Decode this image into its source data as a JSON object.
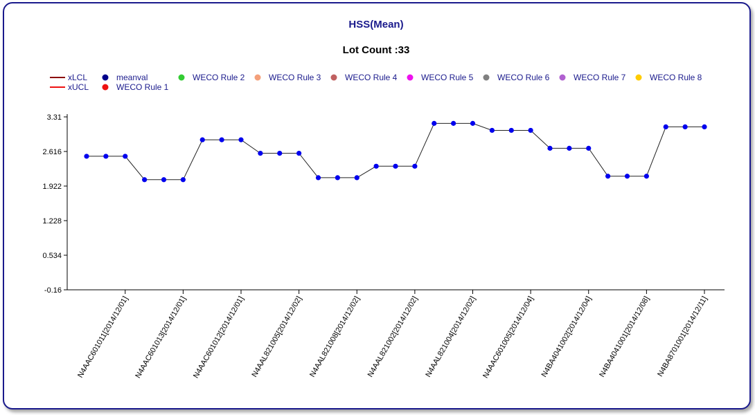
{
  "chart_data": {
    "type": "line",
    "title": "HSS(Mean)",
    "subtitle": "Lot Count :33",
    "ylim": [
      -0.16,
      3.31
    ],
    "y_ticks": [
      "3.31",
      "2.616",
      "1.922",
      "1.228",
      "0.534",
      "-0.16"
    ],
    "y_tick_values": [
      3.31,
      2.616,
      1.922,
      1.228,
      0.534,
      -0.16
    ],
    "x_tick_labels": [
      "N4AAC601011[2014/12/01]",
      "N4AAC601013[2014/12/01]",
      "N4AAC601012[2014/12/01]",
      "N4AAL821005[2014/12/02]",
      "N4AAL821008[2014/12/02]",
      "N4AAL821002[2014/12/02]",
      "N4AAL821004[2014/12/02]",
      "N4AAC601005[2014/12/04]",
      "N4BA4041002[2014/12/04]",
      "N4BA4041001[2014/12/08]",
      "N4BA8701001[2014/12/11]"
    ],
    "series": [
      {
        "name": "meanval",
        "color": "#0000ee",
        "values": [
          2.52,
          2.52,
          2.52,
          2.05,
          2.05,
          2.05,
          2.85,
          2.85,
          2.85,
          2.58,
          2.58,
          2.58,
          2.09,
          2.09,
          2.09,
          2.32,
          2.32,
          2.32,
          3.18,
          3.18,
          3.18,
          3.04,
          3.04,
          3.04,
          2.68,
          2.68,
          2.68,
          2.12,
          2.12,
          2.12,
          3.11,
          3.11,
          3.11
        ]
      }
    ],
    "legend": [
      {
        "label": "xLCL",
        "kind": "line",
        "color": "#8b0000"
      },
      {
        "label": "xUCL",
        "kind": "line",
        "color": "#ee1111"
      },
      {
        "label": "meanval",
        "kind": "dot",
        "color": "#00008b"
      },
      {
        "label": "WECO Rule 1",
        "kind": "dot",
        "color": "#ee1111"
      },
      {
        "label": "WECO Rule 2",
        "kind": "dot",
        "color": "#33cc33"
      },
      {
        "label": "WECO Rule 3",
        "kind": "dot",
        "color": "#f4a07a"
      },
      {
        "label": "WECO Rule 4",
        "kind": "dot",
        "color": "#c06060"
      },
      {
        "label": "WECO Rule 5",
        "kind": "dot",
        "color": "#ee11ee"
      },
      {
        "label": "WECO Rule 6",
        "kind": "dot",
        "color": "#808080"
      },
      {
        "label": "WECO Rule 7",
        "kind": "dot",
        "color": "#b060d0"
      },
      {
        "label": "WECO Rule 8",
        "kind": "dot",
        "color": "#ffcc00"
      }
    ],
    "legend_position": "top-left",
    "grid": false
  }
}
